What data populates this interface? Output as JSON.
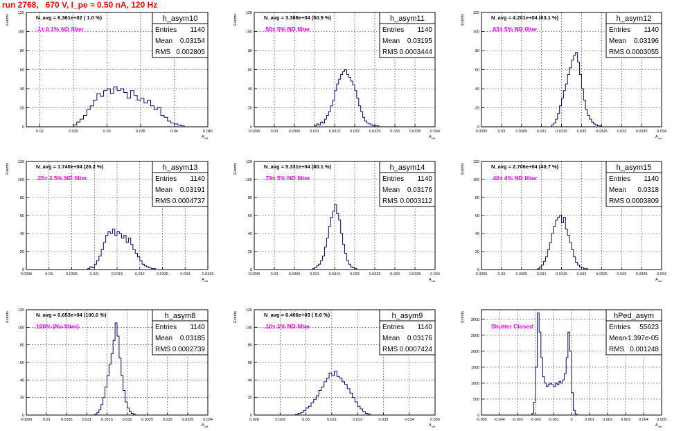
{
  "run_title": "run 2768,   670 V, I_pe ≈ 0.50 nA, 120 Hz",
  "stat_labels": {
    "entries": "Entries",
    "mean": "Mean",
    "rms": "RMS"
  },
  "colors": {
    "histogram_line": "#000080",
    "note_text": "#ff00ff",
    "title_text": "#ff0000",
    "axis": "#000000"
  },
  "chart_data": [
    {
      "type": "bar",
      "name": "h_asym10",
      "ylabel": "Events",
      "xlabel": "A_uid",
      "navg": "N_avg = 6.361e+02 ( 1.0 %)",
      "note": ".1± 0.1% ND filter",
      "stats": {
        "entries": "1140",
        "mean": "0.03154",
        "rms": "0.002805"
      },
      "xlim": [
        0.018,
        0.045
      ],
      "ylim": [
        0,
        120
      ],
      "xticks": [
        0.02,
        0.025,
        0.03,
        0.035,
        0.04,
        0.045
      ],
      "xtick_labels": [
        "0.02",
        "0.025",
        "0.03",
        "0.035",
        "0.04",
        "0.045"
      ],
      "yticks": [
        0,
        20,
        40,
        60,
        80,
        100,
        120
      ],
      "bins": {
        "start": 0.025,
        "width": 0.0005,
        "values": [
          2,
          5,
          8,
          12,
          18,
          22,
          28,
          35,
          32,
          38,
          40,
          35,
          42,
          38,
          40,
          36,
          30,
          38,
          33,
          28,
          30,
          25,
          28,
          22,
          18,
          20,
          12,
          10,
          6,
          4,
          3,
          2,
          1
        ]
      }
    },
    {
      "type": "bar",
      "name": "h_asym11",
      "ylabel": "Events",
      "xlabel": "A_uid",
      "navg": "N_avg = 3.388e+04 (50.9 %)",
      "note": ".50± 5% ND filter",
      "stats": {
        "entries": "1140",
        "mean": "0.03195",
        "rms": "0.0003444"
      },
      "xlim": [
        0.0295,
        0.034
      ],
      "ylim": [
        0,
        120
      ],
      "xticks": [
        0.0295,
        0.03,
        0.0305,
        0.031,
        0.0315,
        0.032,
        0.0325,
        0.033,
        0.0335,
        0.034
      ],
      "xtick_labels": [
        "0.0295",
        "0.03",
        "0.0305",
        "0.031",
        "0.0315",
        "0.032",
        "0.0325",
        "0.033",
        "0.0335",
        "0.034"
      ],
      "yticks": [
        0,
        20,
        40,
        60,
        80,
        100,
        120
      ],
      "bins": {
        "start": 0.031,
        "width": 5e-05,
        "values": [
          1,
          3,
          2,
          5,
          4,
          8,
          12,
          16,
          22,
          28,
          38,
          45,
          50,
          55,
          58,
          60,
          55,
          52,
          48,
          44,
          38,
          30,
          22,
          16,
          10,
          6,
          4,
          3,
          2,
          1,
          1,
          1
        ]
      }
    },
    {
      "type": "bar",
      "name": "h_asym12",
      "ylabel": "Events",
      "xlabel": "A_uid",
      "navg": "N_avg = 4.201e+04 (63.1 %)",
      "note": ".63± 5% ND filter",
      "stats": {
        "entries": "1140",
        "mean": "0.03196",
        "rms": "0.0003055"
      },
      "xlim": [
        0.0295,
        0.034
      ],
      "ylim": [
        0,
        120
      ],
      "xticks": [
        0.0295,
        0.03,
        0.0305,
        0.031,
        0.0315,
        0.032,
        0.0325,
        0.033,
        0.0335,
        0.034
      ],
      "xtick_labels": [
        "0.0295",
        "0.03",
        "0.0305",
        "0.031",
        "0.0315",
        "0.032",
        "0.0325",
        "0.033",
        "0.0335",
        "0.034"
      ],
      "yticks": [
        0,
        20,
        40,
        60,
        80,
        100,
        120
      ],
      "bins": {
        "start": 0.03125,
        "width": 5e-05,
        "values": [
          2,
          4,
          8,
          14,
          22,
          30,
          38,
          45,
          55,
          62,
          70,
          75,
          78,
          68,
          55,
          40,
          28,
          18,
          12,
          8,
          5,
          3,
          2,
          1,
          1
        ]
      }
    },
    {
      "type": "bar",
      "name": "h_asym13",
      "ylabel": "Events",
      "xlabel": "A_uid",
      "navg": "N_avg = 1.740e+04 (26.2 %)",
      "note": ".25± 2.5% ND filter",
      "stats": {
        "entries": "1140",
        "mean": "0.03191",
        "rms": "0.0004737"
      },
      "xlim": [
        0.0295,
        0.0335
      ],
      "ylim": [
        0,
        120
      ],
      "xticks": [
        0.0295,
        0.03,
        0.0305,
        0.031,
        0.0315,
        0.032,
        0.0325,
        0.033,
        0.0335
      ],
      "xtick_labels": [
        "0.0295",
        "0.03",
        "0.0305",
        "0.031",
        "0.0315",
        "0.032",
        "0.0325",
        "0.033",
        "0.0335"
      ],
      "yticks": [
        0,
        20,
        40,
        60,
        80,
        100,
        120
      ],
      "bins": {
        "start": 0.03085,
        "width": 5e-05,
        "values": [
          1,
          3,
          2,
          6,
          10,
          15,
          22,
          30,
          38,
          42,
          40,
          45,
          38,
          42,
          40,
          35,
          38,
          30,
          35,
          28,
          22,
          18,
          14,
          10,
          6,
          4,
          3,
          2,
          1,
          1
        ]
      }
    },
    {
      "type": "bar",
      "name": "h_asym14",
      "ylabel": "Events",
      "xlabel": "A_uid",
      "navg": "N_avg = 5.331e+04 (80.1 %)",
      "note": ".79± 5% ND filter",
      "stats": {
        "entries": "1140",
        "mean": "0.03176",
        "rms": "0.0003112"
      },
      "xlim": [
        0.0295,
        0.034
      ],
      "ylim": [
        0,
        120
      ],
      "xticks": [
        0.0295,
        0.03,
        0.0305,
        0.031,
        0.0315,
        0.032,
        0.0325,
        0.033,
        0.0335,
        0.034
      ],
      "xtick_labels": [
        "0.0295",
        "0.03",
        "0.0305",
        "0.031",
        "0.0315",
        "0.032",
        "0.0325",
        "0.033",
        "0.0335",
        "0.034"
      ],
      "yticks": [
        0,
        20,
        40,
        60,
        80,
        100,
        120
      ],
      "bins": {
        "start": 0.03095,
        "width": 5e-05,
        "values": [
          1,
          2,
          4,
          6,
          10,
          15,
          25,
          35,
          48,
          58,
          65,
          72,
          62,
          55,
          40,
          28,
          18,
          10,
          6,
          3,
          2,
          1
        ]
      }
    },
    {
      "type": "bar",
      "name": "h_asym15",
      "ylabel": "Events",
      "xlabel": "A_uid",
      "navg": "N_avg = 2.706e+04 (40.7 %)",
      "note": ".40± 4% ND filter",
      "stats": {
        "entries": "1140",
        "mean": "0.0318",
        "rms": "0.0003809"
      },
      "xlim": [
        0.0295,
        0.034
      ],
      "ylim": [
        0,
        120
      ],
      "xticks": [
        0.0295,
        0.03,
        0.0305,
        0.031,
        0.0315,
        0.032,
        0.0325,
        0.033,
        0.0335,
        0.034
      ],
      "xtick_labels": [
        "0.0295",
        "0.03",
        "0.0305",
        "0.031",
        "0.0315",
        "0.032",
        "0.0325",
        "0.033",
        "0.0335",
        "0.034"
      ],
      "yticks": [
        0,
        20,
        40,
        60,
        80,
        100,
        120
      ],
      "bins": {
        "start": 0.0309,
        "width": 5e-05,
        "values": [
          1,
          3,
          5,
          9,
          14,
          22,
          30,
          40,
          48,
          55,
          58,
          60,
          52,
          58,
          45,
          38,
          30,
          22,
          14,
          8,
          5,
          3,
          2,
          1,
          1
        ]
      }
    },
    {
      "type": "bar",
      "name": "h_asym8",
      "ylabel": "Events",
      "xlabel": "A_uid",
      "navg": "N_avg = 6.653e+04 (100.0 %)",
      "note": "100% (No filter)",
      "stats": {
        "entries": "1140",
        "mean": "0.03185",
        "rms": "0.0002739"
      },
      "xlim": [
        0.0295,
        0.034
      ],
      "ylim": [
        0,
        120
      ],
      "xticks": [
        0.0295,
        0.03,
        0.0305,
        0.031,
        0.0315,
        0.032,
        0.0325,
        0.033,
        0.0335,
        0.034
      ],
      "xtick_labels": [
        "0.0295",
        "0.03",
        "0.0305",
        "0.031",
        "0.0315",
        "0.032",
        "0.0325",
        "0.033",
        "0.0335",
        "0.034"
      ],
      "yticks": [
        0,
        20,
        40,
        60,
        80,
        100,
        120
      ],
      "bins": {
        "start": 0.0312,
        "width": 5e-05,
        "values": [
          1,
          3,
          6,
          12,
          20,
          32,
          45,
          58,
          70,
          85,
          105,
          90,
          65,
          45,
          28,
          15,
          8,
          4,
          2,
          1
        ]
      }
    },
    {
      "type": "bar",
      "name": "h_asym9",
      "ylabel": "Events",
      "xlabel": "A_uid",
      "navg": "N_avg = 6.406e+03 ( 9.6 %)",
      "note": ".10± 1% ND filter",
      "stats": {
        "entries": "1140",
        "mean": "0.03176",
        "rms": "0.0007424"
      },
      "xlim": [
        0.028,
        0.035
      ],
      "ylim": [
        0,
        120
      ],
      "xticks": [
        0.028,
        0.029,
        0.03,
        0.031,
        0.032,
        0.033,
        0.034,
        0.035
      ],
      "xtick_labels": [
        "0.028",
        "0.029",
        "0.03",
        "0.031",
        "0.032",
        "0.033",
        "0.034",
        "0.035"
      ],
      "yticks": [
        0,
        20,
        40,
        60,
        80,
        100,
        120
      ],
      "bins": {
        "start": 0.0296,
        "width": 0.0001,
        "values": [
          1,
          2,
          3,
          5,
          8,
          10,
          14,
          18,
          22,
          28,
          32,
          38,
          42,
          48,
          45,
          50,
          44,
          42,
          38,
          35,
          30,
          25,
          20,
          15,
          10,
          7,
          4,
          2,
          1
        ]
      }
    },
    {
      "type": "bar",
      "name": "hPed_asym",
      "ylabel": "Events",
      "xlabel": "A_uid",
      "navg": "",
      "note": "Shutter Closed",
      "stats": {
        "entries": "55623",
        "mean": "-1.397e-05",
        "rms": "0.001248"
      },
      "xlim": [
        -0.005,
        0.005
      ],
      "ylim": [
        0,
        3300
      ],
      "xticks": [
        -0.005,
        -0.004,
        -0.003,
        -0.002,
        -0.001,
        0,
        0.001,
        0.002,
        0.003,
        0.004,
        0.005
      ],
      "xtick_labels": [
        "-0.005",
        "-0.004",
        "-0.003",
        "-0.002",
        "-0.001",
        "0",
        "0.001",
        "0.002",
        "0.003",
        "0.004",
        "0.005"
      ],
      "yticks": [
        0,
        500,
        1000,
        1500,
        2000,
        2500,
        3000
      ],
      "bins": {
        "start": -0.0022,
        "width": 0.0001,
        "values": [
          50,
          400,
          1500,
          3200,
          2600,
          1800,
          1200,
          1000,
          900,
          950,
          1000,
          950,
          900,
          1000,
          950,
          1050,
          1000,
          1100,
          1300,
          1800,
          2600,
          2000,
          700,
          150,
          30
        ]
      }
    }
  ]
}
